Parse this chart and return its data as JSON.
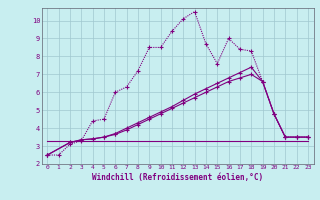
{
  "xlabel": "Windchill (Refroidissement éolien,°C)",
  "bg_color": "#c8eef0",
  "line_color": "#800080",
  "grid_color": "#a0c8d0",
  "xlim": [
    -0.5,
    23.5
  ],
  "ylim": [
    2,
    10.7
  ],
  "yticks": [
    2,
    3,
    4,
    5,
    6,
    7,
    8,
    9,
    10
  ],
  "xticks": [
    0,
    1,
    2,
    3,
    4,
    5,
    6,
    7,
    8,
    9,
    10,
    11,
    12,
    13,
    14,
    15,
    16,
    17,
    18,
    19,
    20,
    21,
    22,
    23
  ],
  "series1_x": [
    0,
    1,
    2,
    3,
    4,
    5,
    6,
    7,
    8,
    9,
    10,
    11,
    12,
    13,
    14,
    15,
    16,
    17,
    18,
    19,
    20,
    21,
    22,
    23
  ],
  "series1_y": [
    2.5,
    2.5,
    3.1,
    3.3,
    4.4,
    4.5,
    6.0,
    6.3,
    7.2,
    8.5,
    8.5,
    9.4,
    10.1,
    10.5,
    8.7,
    7.6,
    9.0,
    8.4,
    8.3,
    6.6,
    4.8,
    3.5,
    3.5,
    3.5
  ],
  "series2_x": [
    0,
    23
  ],
  "series2_y": [
    3.3,
    3.3
  ],
  "series3_x": [
    0,
    2,
    3,
    4,
    5,
    6,
    7,
    8,
    9,
    10,
    11,
    12,
    13,
    14,
    15,
    16,
    17,
    18,
    19,
    20,
    21,
    22,
    23
  ],
  "series3_y": [
    2.5,
    3.2,
    3.35,
    3.4,
    3.5,
    3.65,
    3.9,
    4.2,
    4.5,
    4.8,
    5.1,
    5.4,
    5.7,
    6.0,
    6.3,
    6.6,
    6.8,
    7.0,
    6.6,
    4.8,
    3.5,
    3.5,
    3.5
  ],
  "series4_x": [
    0,
    2,
    3,
    4,
    5,
    6,
    7,
    8,
    9,
    10,
    11,
    12,
    13,
    14,
    15,
    16,
    17,
    18,
    19,
    20,
    21,
    22,
    23
  ],
  "series4_y": [
    2.5,
    3.2,
    3.35,
    3.4,
    3.5,
    3.7,
    4.0,
    4.3,
    4.6,
    4.9,
    5.2,
    5.55,
    5.9,
    6.2,
    6.5,
    6.8,
    7.1,
    7.4,
    6.6,
    4.8,
    3.5,
    3.5,
    3.5
  ]
}
